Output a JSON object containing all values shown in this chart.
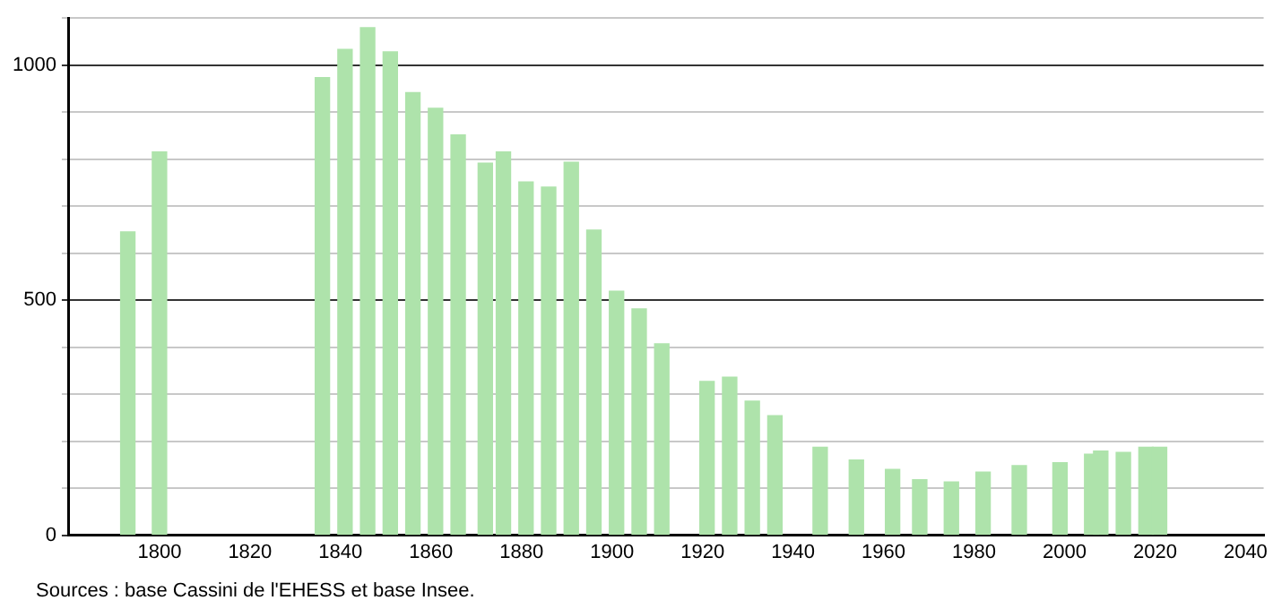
{
  "chart_data": {
    "type": "bar",
    "x": [
      1793,
      1800,
      1836,
      1841,
      1846,
      1851,
      1856,
      1861,
      1866,
      1872,
      1876,
      1881,
      1886,
      1891,
      1896,
      1901,
      1906,
      1911,
      1921,
      1926,
      1931,
      1936,
      1946,
      1954,
      1962,
      1968,
      1975,
      1982,
      1990,
      1999,
      2006,
      2008,
      2013,
      2018,
      2021
    ],
    "values": [
      645,
      815,
      973,
      1033,
      1079,
      1028,
      941,
      908,
      851,
      791,
      815,
      751,
      740,
      793,
      649,
      519,
      481,
      407,
      327,
      336,
      285,
      254,
      187,
      160,
      140,
      118,
      113,
      134,
      148,
      154,
      172,
      179,
      176,
      187,
      187
    ],
    "color": "#aee3ab",
    "xlim": [
      1780,
      2044
    ],
    "xticks": [
      1800,
      1820,
      1840,
      1860,
      1880,
      1900,
      1920,
      1940,
      1960,
      1980,
      2000,
      2020,
      2040
    ],
    "ylim": [
      0,
      1100
    ],
    "yticks": [
      0,
      {
        "value": 100,
        "label": null
      },
      {
        "value": 200,
        "label": null
      },
      {
        "value": 300,
        "label": null
      },
      {
        "value": 400,
        "label": null
      },
      500,
      {
        "value": 600,
        "label": null
      },
      {
        "value": 700,
        "label": null
      },
      {
        "value": 800,
        "label": null
      },
      {
        "value": 900,
        "label": null
      },
      1000,
      {
        "value": 1100,
        "label": null
      }
    ],
    "grid": "y",
    "legend": false,
    "annotations": [
      "Sources : base Cassini de l'EHESS et base Insee."
    ]
  }
}
